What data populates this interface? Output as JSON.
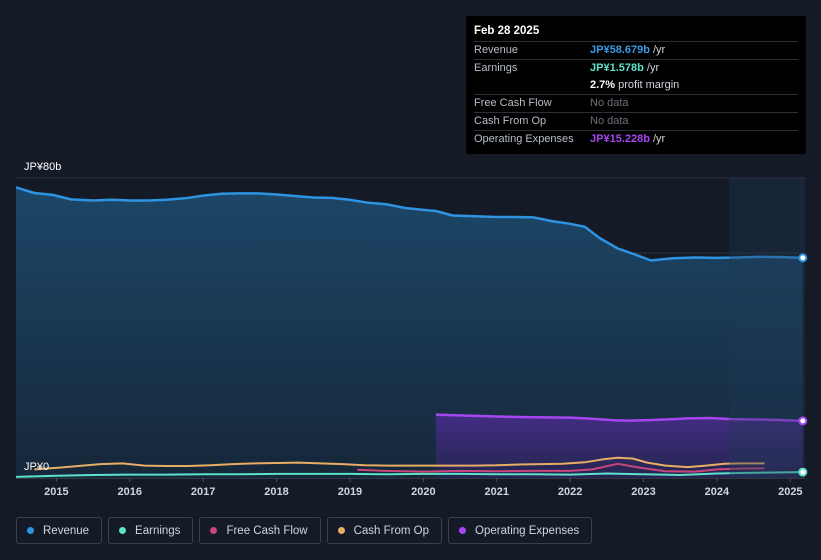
{
  "tooltip": {
    "date": "Feb 28 2025",
    "rows": [
      {
        "label": "Revenue",
        "value": "JP¥58.679b",
        "unit": " /yr",
        "color": "#3a9be3"
      },
      {
        "label": "Earnings",
        "value": "JP¥1.578b",
        "unit": " /yr",
        "color": "#5fe0c8"
      },
      {
        "label": "",
        "value": "2.7%",
        "unit": " profit margin",
        "color": "#ffffff"
      },
      {
        "label": "Free Cash Flow",
        "value": "No data",
        "unit": "",
        "color": "#6b717b"
      },
      {
        "label": "Cash From Op",
        "value": "No data",
        "unit": "",
        "color": "#6b717b"
      },
      {
        "label": "Operating Expenses",
        "value": "JP¥15.228b",
        "unit": " /yr",
        "color": "#a646f0"
      }
    ]
  },
  "chart_data": {
    "type": "area",
    "title": "",
    "xlabel": "",
    "ylabel": "JP¥",
    "y_top_label": "JP¥80b",
    "y_bottom_label": "JP¥0",
    "ylim": [
      0,
      80
    ],
    "xlim": [
      2014.45,
      2025.2
    ],
    "x_ticks": [
      2015,
      2016,
      2017,
      2018,
      2019,
      2020,
      2021,
      2022,
      2023,
      2024,
      2025
    ],
    "x_tick_labels": [
      "2015",
      "2016",
      "2017",
      "2018",
      "2019",
      "2020",
      "2021",
      "2022",
      "2023",
      "2024",
      "2025"
    ],
    "forecast_start": 2024.17,
    "series": [
      {
        "name": "Revenue",
        "color": "#2e93e0",
        "x": [
          2014.45,
          2014.7,
          2014.95,
          2015.2,
          2015.5,
          2015.75,
          2016.0,
          2016.25,
          2016.5,
          2016.75,
          2017.0,
          2017.25,
          2017.5,
          2017.75,
          2018.0,
          2018.25,
          2018.5,
          2018.75,
          2019.0,
          2019.25,
          2019.5,
          2019.75,
          2020.0,
          2020.17,
          2020.4,
          2020.7,
          2021.0,
          2021.25,
          2021.5,
          2021.75,
          2022.0,
          2022.2,
          2022.4,
          2022.65,
          2022.9,
          2023.1,
          2023.4,
          2023.7,
          2024.0,
          2024.3,
          2024.6,
          2024.9,
          2025.17
        ],
        "values": [
          77.5,
          76.0,
          75.5,
          74.3,
          74.0,
          74.2,
          74.0,
          74.0,
          74.2,
          74.6,
          75.3,
          75.8,
          75.9,
          75.9,
          75.6,
          75.2,
          74.8,
          74.7,
          74.2,
          73.4,
          73.0,
          72.0,
          71.5,
          71.2,
          70.0,
          69.8,
          69.6,
          69.6,
          69.5,
          68.5,
          67.8,
          67.0,
          64.0,
          61.2,
          59.5,
          58.0,
          58.6,
          58.8,
          58.7,
          58.8,
          59.0,
          58.9,
          58.7
        ]
      },
      {
        "name": "Earnings",
        "color": "#5fe0c8",
        "x": [
          2014.45,
          2015.0,
          2015.5,
          2016.0,
          2016.5,
          2017.0,
          2017.5,
          2018.0,
          2018.5,
          2019.0,
          2019.5,
          2020.0,
          2020.5,
          2021.0,
          2021.5,
          2022.0,
          2022.5,
          2023.0,
          2023.5,
          2024.0,
          2024.5,
          2025.17
        ],
        "values": [
          0.3,
          0.6,
          0.8,
          0.9,
          0.9,
          1.0,
          1.0,
          1.1,
          1.1,
          1.1,
          1.0,
          1.1,
          1.1,
          1.0,
          1.0,
          0.9,
          1.2,
          1.0,
          0.8,
          1.2,
          1.4,
          1.578
        ]
      },
      {
        "name": "Free Cash Flow",
        "color": "#c8467c",
        "x": [
          2019.1,
          2019.5,
          2020.0,
          2020.5,
          2021.0,
          2021.5,
          2022.0,
          2022.3,
          2022.65,
          2023.0,
          2023.3,
          2023.7,
          2024.0,
          2024.3,
          2024.65
        ],
        "values": [
          2.2,
          1.9,
          1.7,
          1.9,
          1.8,
          1.9,
          1.9,
          2.3,
          3.8,
          2.6,
          1.8,
          1.7,
          2.3,
          2.5,
          2.6
        ]
      },
      {
        "name": "Cash From Op",
        "color": "#e8ad64",
        "x": [
          2014.7,
          2015.0,
          2015.3,
          2015.6,
          2015.9,
          2016.2,
          2016.5,
          2016.8,
          2017.1,
          2017.4,
          2017.7,
          2018.0,
          2018.3,
          2018.6,
          2018.9,
          2019.2,
          2019.5,
          2019.8,
          2020.1,
          2020.4,
          2020.7,
          2021.0,
          2021.3,
          2021.6,
          2021.9,
          2022.2,
          2022.45,
          2022.65,
          2022.85,
          2023.05,
          2023.3,
          2023.6,
          2023.85,
          2024.1,
          2024.35,
          2024.65
        ],
        "values": [
          2.3,
          2.7,
          3.2,
          3.7,
          3.9,
          3.3,
          3.2,
          3.2,
          3.4,
          3.7,
          3.9,
          4.0,
          4.1,
          3.9,
          3.7,
          3.4,
          3.3,
          3.3,
          3.3,
          3.3,
          3.3,
          3.4,
          3.6,
          3.7,
          3.8,
          4.2,
          5.0,
          5.4,
          5.2,
          4.1,
          3.3,
          2.9,
          3.3,
          3.8,
          3.9,
          3.9
        ]
      },
      {
        "name": "Operating Expenses",
        "color": "#a646f0",
        "x": [
          2020.17,
          2020.5,
          2021.0,
          2021.5,
          2022.0,
          2022.3,
          2022.6,
          2022.8,
          2023.0,
          2023.3,
          2023.6,
          2023.9,
          2024.2,
          2024.5,
          2024.8,
          2025.17
        ],
        "values": [
          16.9,
          16.7,
          16.4,
          16.2,
          16.1,
          15.8,
          15.4,
          15.3,
          15.4,
          15.6,
          15.9,
          16.0,
          15.7,
          15.6,
          15.5,
          15.228
        ]
      }
    ]
  },
  "legend": [
    {
      "name": "Revenue",
      "color": "#2e93e0"
    },
    {
      "name": "Earnings",
      "color": "#5fe0c8"
    },
    {
      "name": "Free Cash Flow",
      "color": "#c8467c"
    },
    {
      "name": "Cash From Op",
      "color": "#e8ad64"
    },
    {
      "name": "Operating Expenses",
      "color": "#a646f0"
    }
  ]
}
